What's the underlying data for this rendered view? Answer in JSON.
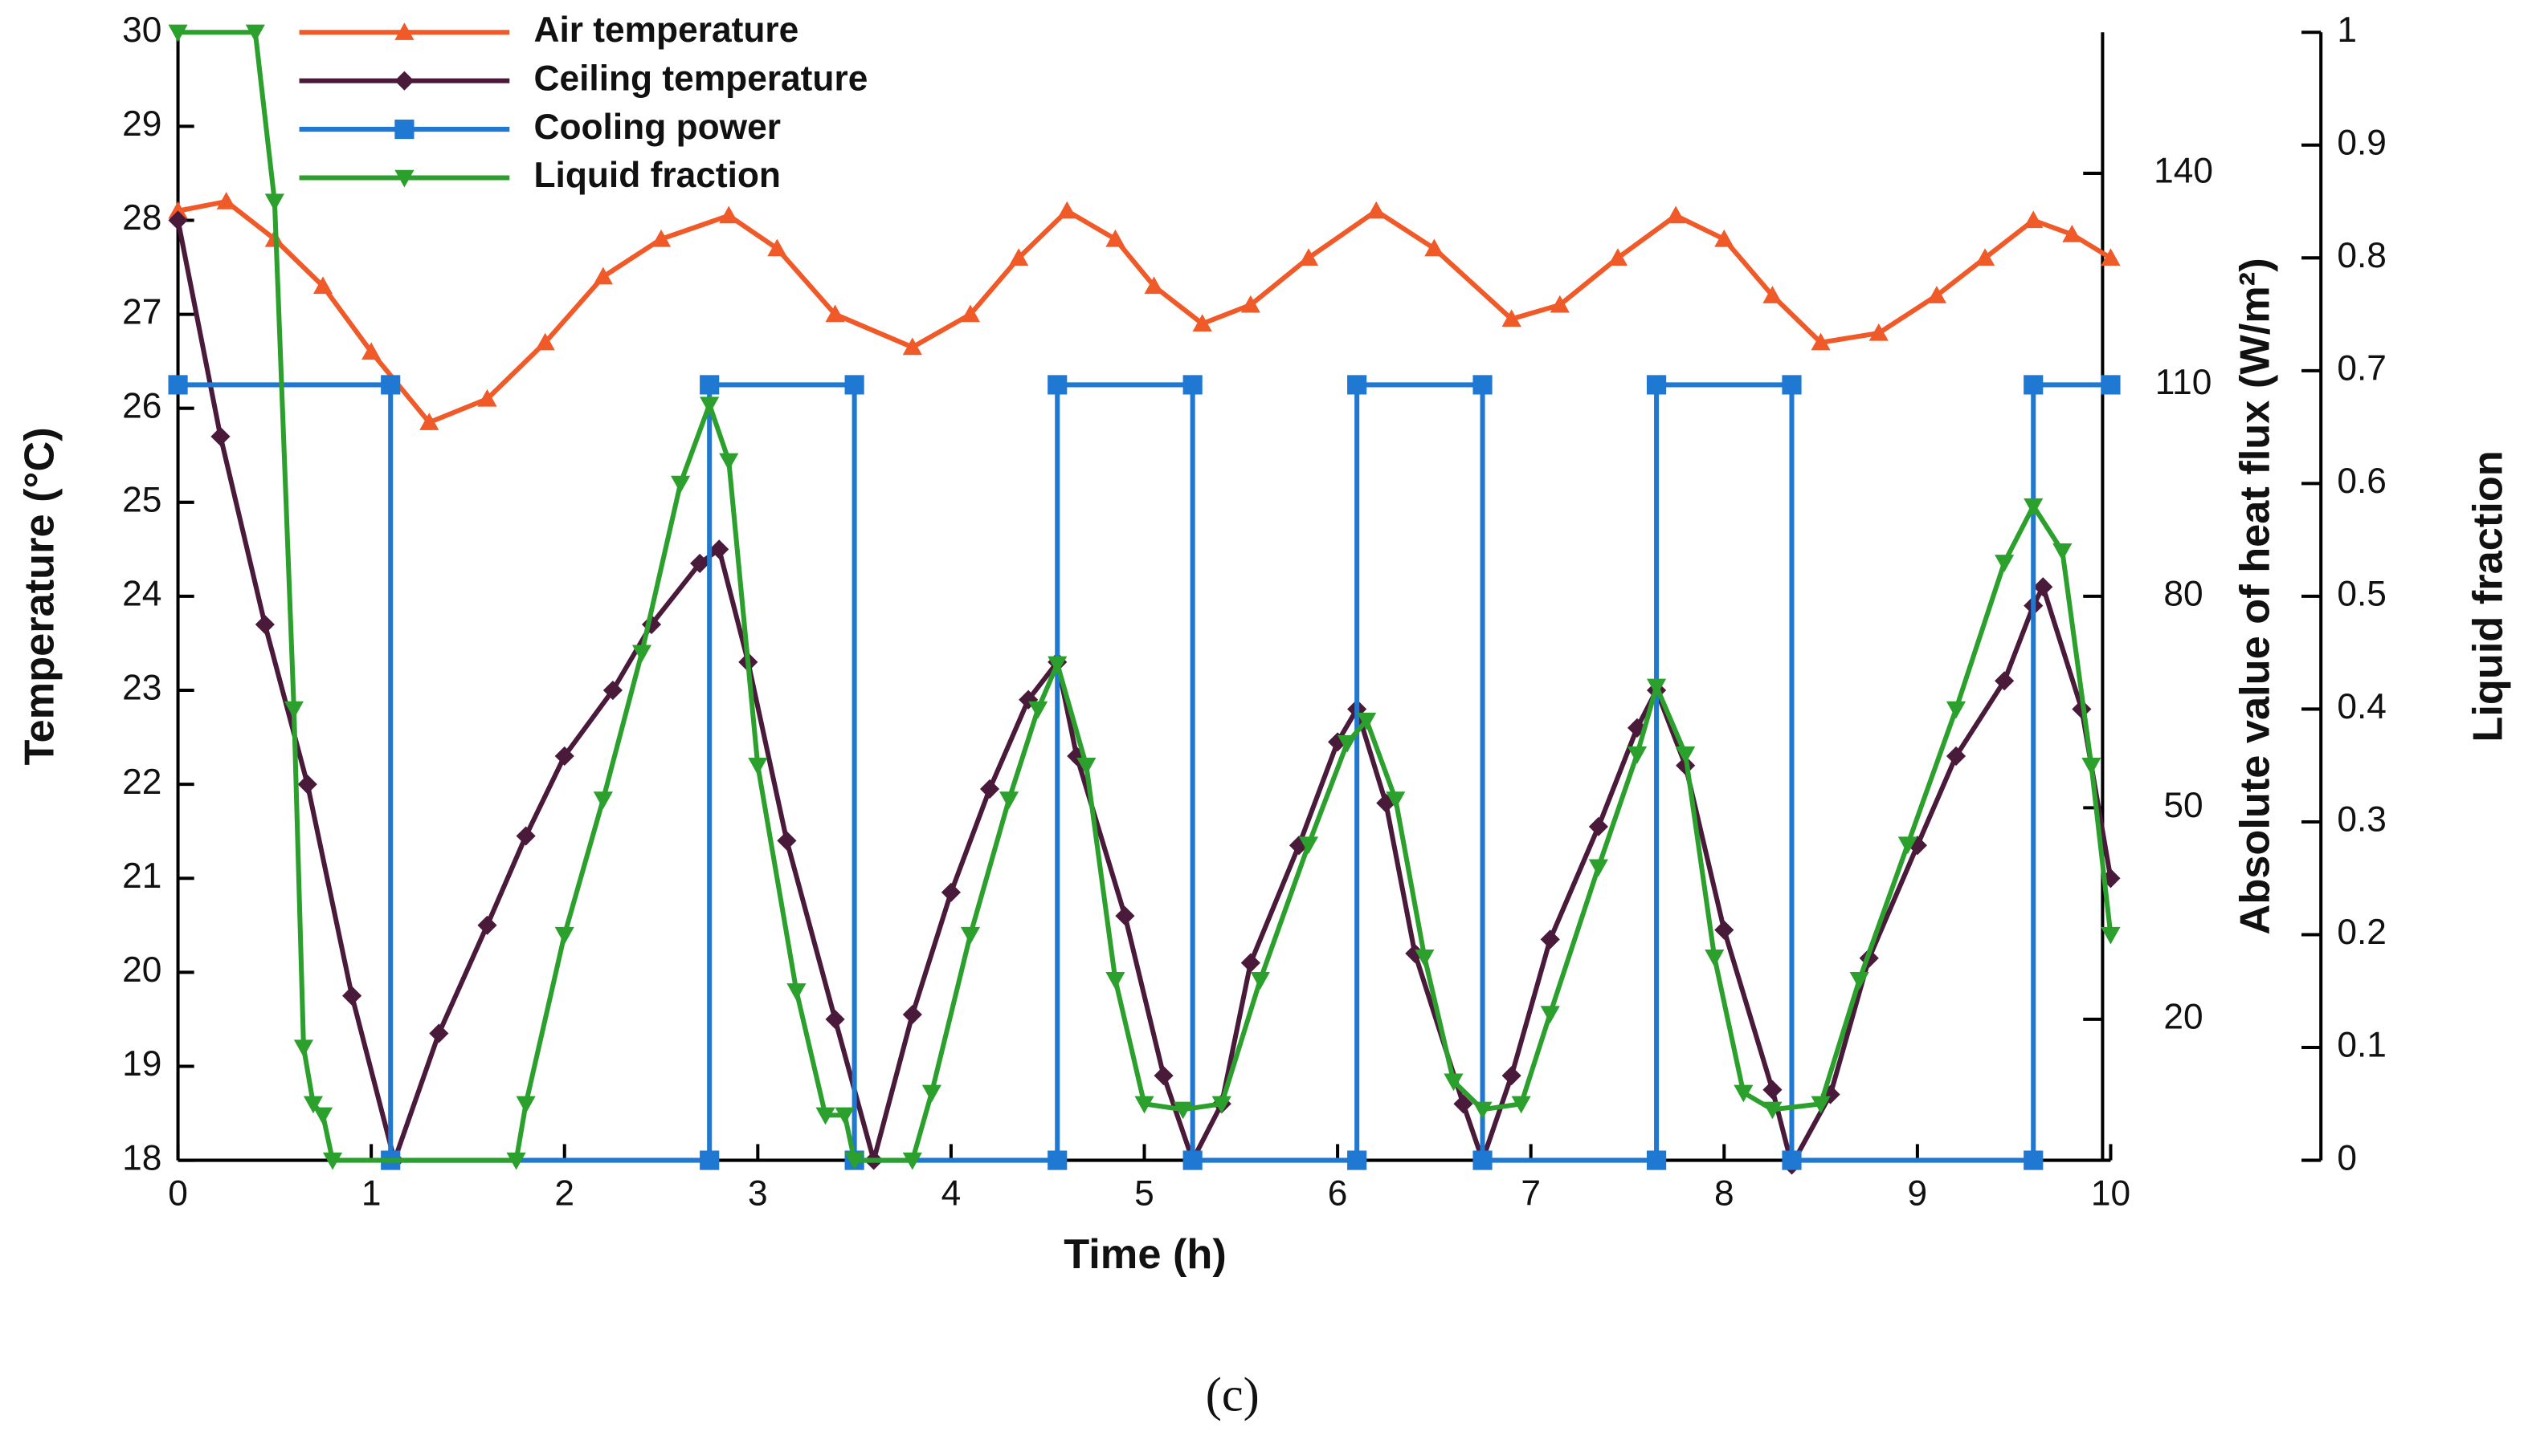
{
  "chart_data": {
    "type": "line",
    "xlabel": "Time (h)",
    "ylabel": "Temperature (°C)",
    "y2label": "Absolute value of heat flux (W/m²)",
    "y3label": "Liquid fraction",
    "caption": "(c)",
    "xlim": [
      0,
      10
    ],
    "xticks": [
      0,
      1,
      2,
      3,
      4,
      5,
      6,
      7,
      8,
      9,
      10
    ],
    "ylim": [
      18,
      30
    ],
    "yticks": [
      18,
      19,
      20,
      21,
      22,
      23,
      24,
      25,
      26,
      27,
      28,
      29,
      30
    ],
    "y2lim": [
      0,
      160
    ],
    "y2ticks": [
      20,
      50,
      80,
      110,
      140
    ],
    "y3lim": [
      0,
      1
    ],
    "y3ticks": [
      0,
      0.1,
      0.2,
      0.3,
      0.4,
      0.5,
      0.6,
      0.7,
      0.8,
      0.9,
      1
    ],
    "legend": "upper left",
    "series": [
      {
        "name": "Air temperature",
        "color": "#f05a28",
        "marker": "triangle-up",
        "axis": "y",
        "x": [
          0,
          0.25,
          0.5,
          0.75,
          1.0,
          1.3,
          1.6,
          1.9,
          2.2,
          2.5,
          2.85,
          3.1,
          3.4,
          3.8,
          4.1,
          4.35,
          4.6,
          4.85,
          5.05,
          5.3,
          5.55,
          5.85,
          6.2,
          6.5,
          6.9,
          7.15,
          7.45,
          7.75,
          8.0,
          8.25,
          8.5,
          8.8,
          9.1,
          9.35,
          9.6,
          9.8,
          10
        ],
        "values": [
          28.1,
          28.2,
          27.8,
          27.3,
          26.6,
          25.85,
          26.1,
          26.7,
          27.4,
          27.8,
          28.05,
          27.7,
          27.0,
          26.65,
          27.0,
          27.6,
          28.1,
          27.8,
          27.3,
          26.9,
          27.1,
          27.6,
          28.1,
          27.7,
          26.95,
          27.1,
          27.6,
          28.05,
          27.8,
          27.2,
          26.7,
          26.8,
          27.2,
          27.6,
          28.0,
          27.85,
          27.6
        ]
      },
      {
        "name": "Ceiling temperature",
        "color": "#4a1a3a",
        "marker": "diamond",
        "axis": "y",
        "x": [
          0,
          0.22,
          0.45,
          0.67,
          0.9,
          1.12,
          1.35,
          1.6,
          1.8,
          2.0,
          2.25,
          2.45,
          2.7,
          2.8,
          2.95,
          3.15,
          3.4,
          3.6,
          3.8,
          4.0,
          4.2,
          4.4,
          4.55,
          4.65,
          4.9,
          5.1,
          5.25,
          5.4,
          5.55,
          5.8,
          6.0,
          6.1,
          6.25,
          6.4,
          6.65,
          6.75,
          6.9,
          7.1,
          7.35,
          7.55,
          7.65,
          7.8,
          8.0,
          8.25,
          8.35,
          8.55,
          8.75,
          9.0,
          9.2,
          9.45,
          9.6,
          9.65,
          9.85,
          10
        ],
        "values": [
          28,
          25.7,
          23.7,
          22.0,
          19.75,
          18.0,
          19.35,
          20.5,
          21.45,
          22.3,
          23.0,
          23.7,
          24.35,
          24.5,
          23.3,
          21.4,
          19.5,
          18.0,
          19.55,
          20.85,
          21.95,
          22.9,
          23.3,
          22.3,
          20.6,
          18.9,
          18.0,
          18.6,
          20.1,
          21.35,
          22.45,
          22.8,
          21.8,
          20.2,
          18.6,
          18.0,
          18.9,
          20.35,
          21.55,
          22.6,
          23.0,
          22.2,
          20.45,
          18.75,
          17.95,
          18.7,
          20.15,
          21.35,
          22.3,
          23.1,
          23.9,
          24.1,
          22.8,
          21.0
        ]
      },
      {
        "name": "Cooling power",
        "color": "#1f78d1",
        "marker": "square",
        "axis": "y2",
        "x": [
          0,
          1.1,
          1.1,
          2.75,
          2.75,
          3.5,
          3.5,
          4.55,
          4.55,
          5.25,
          5.25,
          6.1,
          6.1,
          6.75,
          6.75,
          7.65,
          7.65,
          8.35,
          8.35,
          9.6,
          9.6,
          10
        ],
        "values": [
          110,
          110,
          0,
          0,
          110,
          110,
          0,
          0,
          110,
          110,
          0,
          0,
          110,
          110,
          0,
          0,
          110,
          110,
          0,
          0,
          110,
          110
        ]
      },
      {
        "name": "Liquid fraction",
        "color": "#2ca02c",
        "marker": "triangle-down",
        "axis": "y3",
        "x": [
          0,
          0.4,
          0.5,
          0.6,
          0.65,
          0.7,
          0.75,
          0.8,
          1.75,
          1.8,
          2.0,
          2.2,
          2.4,
          2.6,
          2.75,
          2.85,
          3.0,
          3.2,
          3.35,
          3.45,
          3.5,
          3.8,
          3.9,
          4.1,
          4.3,
          4.45,
          4.55,
          4.7,
          4.85,
          5.0,
          5.2,
          5.4,
          5.6,
          5.85,
          6.05,
          6.15,
          6.3,
          6.45,
          6.6,
          6.75,
          6.95,
          7.1,
          7.35,
          7.55,
          7.65,
          7.8,
          7.95,
          8.1,
          8.25,
          8.5,
          8.7,
          8.95,
          9.2,
          9.45,
          9.6,
          9.75,
          9.9,
          10
        ],
        "values": [
          1,
          1,
          0.85,
          0.4,
          0.1,
          0.05,
          0.04,
          0,
          0,
          0.05,
          0.2,
          0.32,
          0.45,
          0.6,
          0.67,
          0.62,
          0.35,
          0.15,
          0.04,
          0.04,
          0,
          0,
          0.06,
          0.2,
          0.32,
          0.4,
          0.44,
          0.35,
          0.16,
          0.05,
          0.045,
          0.05,
          0.16,
          0.28,
          0.37,
          0.39,
          0.32,
          0.18,
          0.07,
          0.045,
          0.05,
          0.13,
          0.26,
          0.36,
          0.42,
          0.36,
          0.18,
          0.06,
          0.045,
          0.05,
          0.16,
          0.28,
          0.4,
          0.53,
          0.58,
          0.54,
          0.35,
          0.2
        ]
      }
    ]
  }
}
